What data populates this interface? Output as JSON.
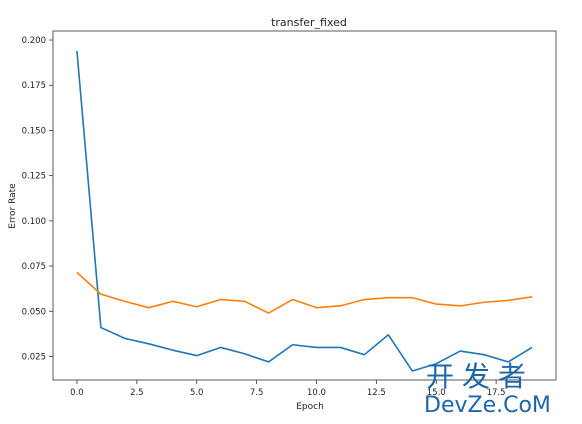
{
  "chart_data": {
    "type": "line",
    "title": "transfer_fixed",
    "xlabel": "Epoch",
    "ylabel": "Error Rate",
    "xlim": [
      -1,
      20
    ],
    "ylim": [
      0.012,
      0.205
    ],
    "xticks": [
      "0.0",
      "2.5",
      "5.0",
      "7.5",
      "10.0",
      "12.5",
      "15.0",
      "17.5"
    ],
    "yticks": [
      "0.025",
      "0.050",
      "0.075",
      "0.100",
      "0.125",
      "0.150",
      "0.175",
      "0.200"
    ],
    "grid": false,
    "x": [
      0,
      1,
      2,
      3,
      4,
      5,
      6,
      7,
      8,
      9,
      10,
      11,
      12,
      13,
      14,
      15,
      16,
      17,
      18,
      19
    ],
    "series": [
      {
        "color": "#1f77b4",
        "values": [
          0.194,
          0.041,
          0.035,
          0.032,
          0.0285,
          0.0255,
          0.03,
          0.0265,
          0.022,
          0.0315,
          0.03,
          0.03,
          0.026,
          0.037,
          0.017,
          0.021,
          0.028,
          0.026,
          0.022,
          0.03
        ]
      },
      {
        "color": "#ff7f0e",
        "values": [
          0.0715,
          0.0595,
          0.0555,
          0.052,
          0.0555,
          0.0525,
          0.0565,
          0.0555,
          0.049,
          0.0565,
          0.052,
          0.053,
          0.0565,
          0.0575,
          0.0575,
          0.054,
          0.053,
          0.055,
          0.056,
          0.058
        ]
      }
    ]
  },
  "watermark": {
    "chinese": "开发者",
    "english": "DevZe.CoM"
  }
}
